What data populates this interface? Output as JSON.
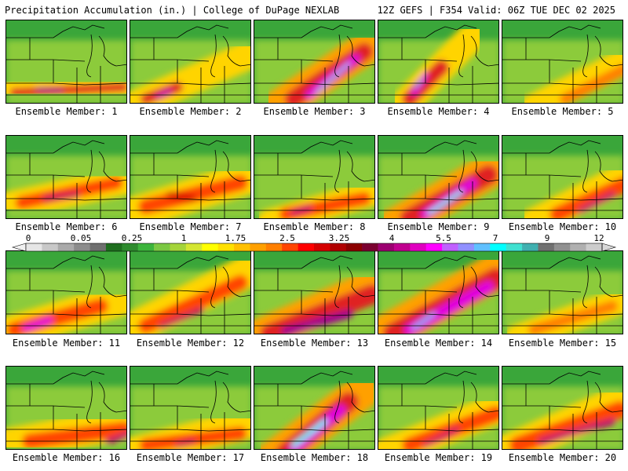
{
  "header": {
    "title_left": "Precipitation Accumulation (in.) | College of DuPage NEXLAB",
    "title_right": "12Z GEFS | F354 Valid: 06Z TUE DEC 02 2025"
  },
  "colorbar": {
    "labels": [
      "0",
      "0.05",
      "0.25",
      "1",
      "1.75",
      "2.5",
      "3.25",
      "4",
      "5.5",
      "7",
      "9",
      "12"
    ],
    "colors": [
      "#e6e6e6",
      "#c8c8c8",
      "#a9a9a9",
      "#8c8c8c",
      "#6f6f6f",
      "#1e6e1e",
      "#2e8b2e",
      "#3cb43c",
      "#7bc843",
      "#a4d43a",
      "#d4e632",
      "#ffff00",
      "#ffe000",
      "#ffc000",
      "#ffa000",
      "#ff7f00",
      "#ff4500",
      "#ff0000",
      "#d40000",
      "#b00000",
      "#8b0000",
      "#7a0030",
      "#9b0070",
      "#c0008f",
      "#e000c0",
      "#ff00ff",
      "#c060ff",
      "#9090ff",
      "#60c0ff",
      "#00ffff",
      "#40e0d0",
      "#40b0b0",
      "#707070",
      "#909090",
      "#b0b0b0",
      "#cccccc"
    ]
  },
  "members": [
    {
      "label": "Ensemble Member: 1"
    },
    {
      "label": "Ensemble Member: 2"
    },
    {
      "label": "Ensemble Member: 3"
    },
    {
      "label": "Ensemble Member: 4"
    },
    {
      "label": "Ensemble Member: 5"
    },
    {
      "label": "Ensemble Member: 6"
    },
    {
      "label": "Ensemble Member: 7"
    },
    {
      "label": "Ensemble Member: 8"
    },
    {
      "label": "Ensemble Member: 9"
    },
    {
      "label": "Ensemble Member: 10"
    },
    {
      "label": "Ensemble Member: 11"
    },
    {
      "label": "Ensemble Member: 12"
    },
    {
      "label": "Ensemble Member: 13"
    },
    {
      "label": "Ensemble Member: 14"
    },
    {
      "label": "Ensemble Member: 15"
    },
    {
      "label": "Ensemble Member: 16"
    },
    {
      "label": "Ensemble Member: 17"
    },
    {
      "label": "Ensemble Member: 18"
    },
    {
      "label": "Ensemble Member: 19"
    },
    {
      "label": "Ensemble Member: 20"
    }
  ]
}
